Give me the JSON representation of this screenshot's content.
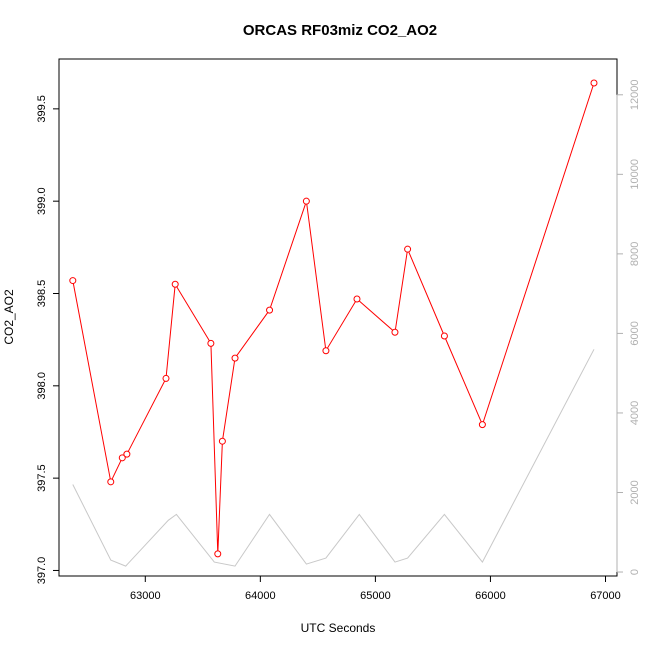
{
  "chart_data": {
    "type": "line",
    "title": "ORCAS RF03miz CO2_AO2",
    "xlabel": "UTC Seconds",
    "ylabel": "CO2_AO2",
    "xlim": [
      62250,
      67100
    ],
    "ylim": [
      396.97,
      399.77
    ],
    "y2lim": [
      -100,
      12900
    ],
    "x_ticks": [
      63000,
      64000,
      65000,
      66000,
      67000
    ],
    "x_tick_labels": [
      "63000",
      "64000",
      "65000",
      "66000",
      "67000"
    ],
    "y_ticks": [
      397.0,
      397.5,
      398.0,
      398.5,
      399.0,
      399.5
    ],
    "y_tick_labels": [
      "397.0",
      "397.5",
      "398.0",
      "398.5",
      "399.0",
      "399.5"
    ],
    "y2_ticks": [
      0,
      2000,
      4000,
      6000,
      8000,
      10000,
      12000
    ],
    "y2_tick_labels": [
      "0",
      "2000",
      "4000",
      "6000",
      "8000",
      "10000",
      "12000"
    ],
    "grid": false,
    "series": [
      {
        "color": "#ff0000",
        "axis": "left",
        "marker": "open-circle",
        "x": [
          62370,
          62700,
          62800,
          62840,
          63180,
          63260,
          63570,
          63630,
          63670,
          63780,
          64080,
          64400,
          64570,
          64840,
          65170,
          65280,
          65600,
          65930,
          66900
        ],
        "y": [
          398.57,
          397.48,
          397.61,
          397.63,
          398.04,
          398.55,
          398.23,
          397.09,
          397.7,
          398.15,
          398.41,
          399.0,
          398.19,
          398.47,
          398.29,
          398.74,
          398.27,
          397.79,
          399.64
        ]
      },
      {
        "color": "#c8c8c8",
        "axis": "right",
        "marker": "none",
        "x": [
          62370,
          62700,
          62830,
          63200,
          63270,
          63600,
          63780,
          64080,
          64400,
          64570,
          64860,
          65170,
          65280,
          65600,
          65930,
          66900
        ],
        "y": [
          2200,
          300,
          150,
          1300,
          1450,
          250,
          150,
          1450,
          200,
          350,
          1450,
          250,
          350,
          1450,
          250,
          5600
        ]
      }
    ]
  }
}
